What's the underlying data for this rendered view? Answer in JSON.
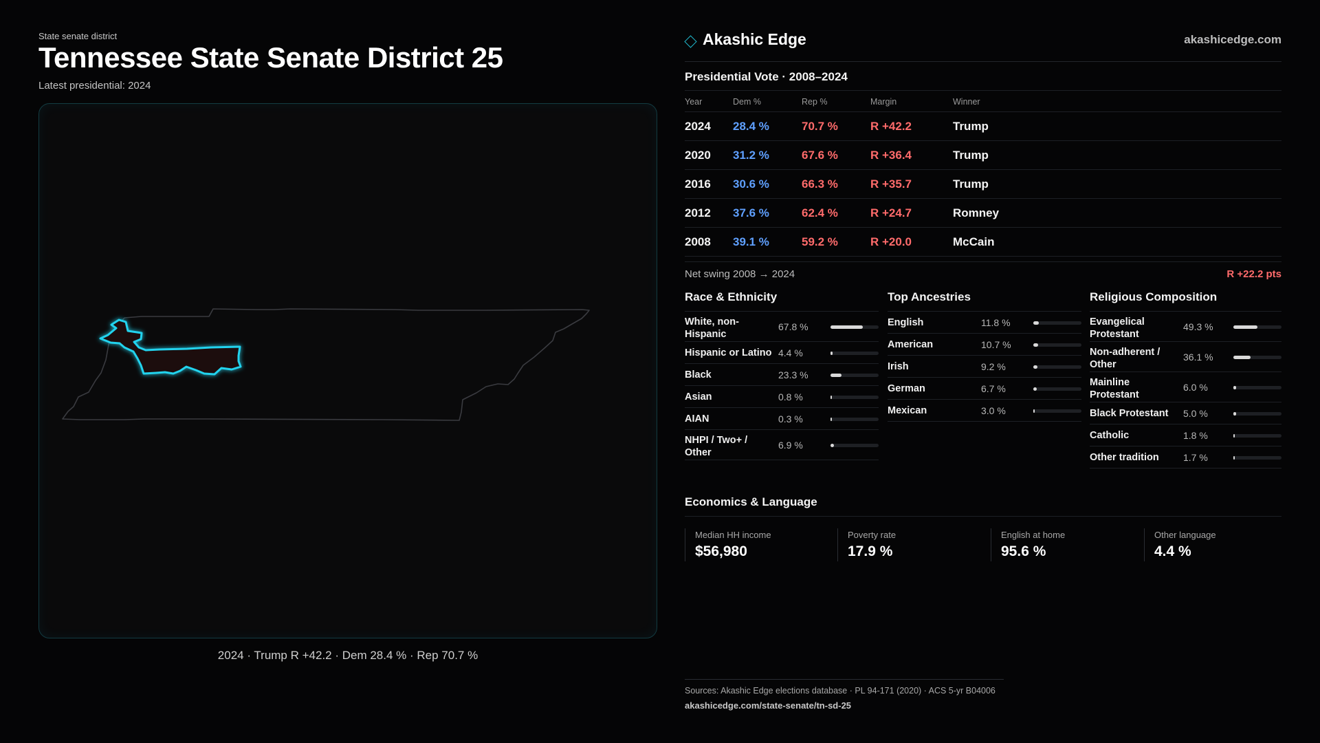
{
  "header": {
    "eyebrow": "State senate district",
    "title": "Tennessee State Senate District 25",
    "subtitle": "Latest presidential: 2024"
  },
  "map": {
    "caption": "2024 · Trump R +42.2 · Dem 28.4 % · Rep 70.7 %",
    "highlight_color": "#22d3ee"
  },
  "brand": {
    "name": "Akashic Edge",
    "url": "akashicedge.com"
  },
  "presidential": {
    "title": "Presidential Vote · 2008–2024",
    "columns": [
      "Year",
      "Dem %",
      "Rep %",
      "Margin",
      "Winner"
    ],
    "rows": [
      {
        "year": "2024",
        "dem": "28.4 %",
        "rep": "70.7 %",
        "margin": "R +42.2",
        "winner": "Trump"
      },
      {
        "year": "2020",
        "dem": "31.2 %",
        "rep": "67.6 %",
        "margin": "R +36.4",
        "winner": "Trump"
      },
      {
        "year": "2016",
        "dem": "30.6 %",
        "rep": "66.3 %",
        "margin": "R +35.7",
        "winner": "Trump"
      },
      {
        "year": "2012",
        "dem": "37.6 %",
        "rep": "62.4 %",
        "margin": "R +24.7",
        "winner": "Romney"
      },
      {
        "year": "2008",
        "dem": "39.1 %",
        "rep": "59.2 %",
        "margin": "R +20.0",
        "winner": "McCain"
      }
    ],
    "swing_label": "Net swing 2008 → 2024",
    "swing_value": "R +22.2 pts",
    "colors": {
      "dem": "#5fa0ff",
      "rep": "#ff6b6b"
    }
  },
  "race": {
    "title": "Race & Ethnicity",
    "items": [
      {
        "label": "White, non-Hispanic",
        "value": "67.8 %",
        "pct": 67.8
      },
      {
        "label": "Hispanic or Latino",
        "value": "4.4 %",
        "pct": 4.4
      },
      {
        "label": "Black",
        "value": "23.3 %",
        "pct": 23.3
      },
      {
        "label": "Asian",
        "value": "0.8 %",
        "pct": 0.8
      },
      {
        "label": "AIAN",
        "value": "0.3 %",
        "pct": 0.3
      },
      {
        "label": "NHPI / Two+ / Other",
        "value": "6.9 %",
        "pct": 6.9
      }
    ]
  },
  "ancestry": {
    "title": "Top Ancestries",
    "items": [
      {
        "label": "English",
        "value": "11.8 %",
        "pct": 11.8
      },
      {
        "label": "American",
        "value": "10.7 %",
        "pct": 10.7
      },
      {
        "label": "Irish",
        "value": "9.2 %",
        "pct": 9.2
      },
      {
        "label": "German",
        "value": "6.7 %",
        "pct": 6.7
      },
      {
        "label": "Mexican",
        "value": "3.0 %",
        "pct": 3.0
      }
    ]
  },
  "religion": {
    "title": "Religious Composition",
    "items": [
      {
        "label": "Evangelical Protestant",
        "value": "49.3 %",
        "pct": 49.3
      },
      {
        "label": "Non-adherent / Other",
        "value": "36.1 %",
        "pct": 36.1
      },
      {
        "label": "Mainline Protestant",
        "value": "6.0 %",
        "pct": 6.0
      },
      {
        "label": "Black Protestant",
        "value": "5.0 %",
        "pct": 5.0
      },
      {
        "label": "Catholic",
        "value": "1.8 %",
        "pct": 1.8
      },
      {
        "label": "Other tradition",
        "value": "1.7 %",
        "pct": 1.7
      }
    ]
  },
  "economics": {
    "title": "Economics & Language",
    "items": [
      {
        "label": "Median HH income",
        "value": "$56,980"
      },
      {
        "label": "Poverty rate",
        "value": "17.9 %"
      },
      {
        "label": "English at home",
        "value": "95.6 %"
      },
      {
        "label": "Other language",
        "value": "4.4 %"
      }
    ]
  },
  "footer": {
    "sources": "Sources: Akashic Edge elections database · PL 94-171 (2020) · ACS 5-yr B04006",
    "url": "akashicedge.com/state-senate/tn-sd-25"
  }
}
